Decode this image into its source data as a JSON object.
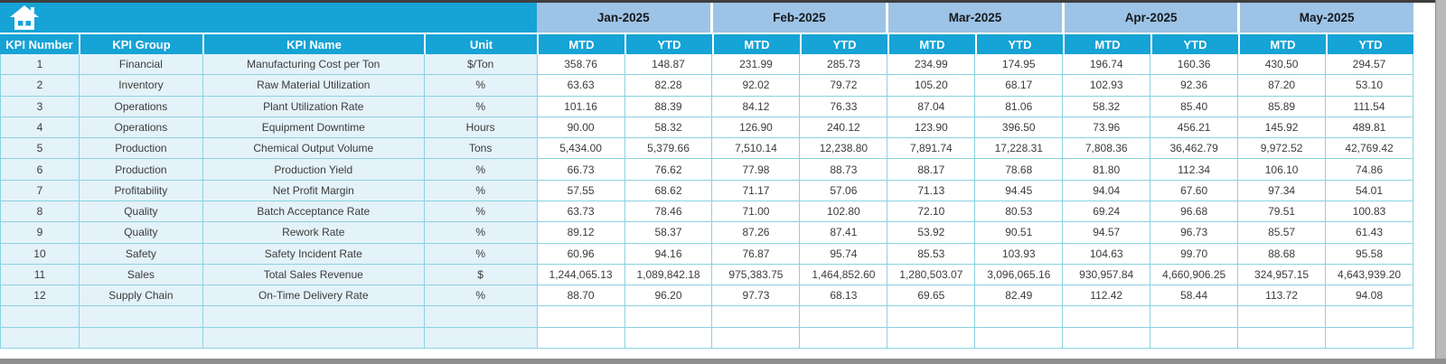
{
  "app": {
    "home_icon": "home",
    "colors": {
      "accent_cyan": "#16a3d6",
      "month_band_blue": "#9dc3e6",
      "row_tint_blue": "#e4f2f9",
      "grid_line_teal": "#8ad2e3",
      "header_text": "#ffffff"
    }
  },
  "table": {
    "left_headers": [
      "KPI Number",
      "KPI Group",
      "KPI Name",
      "Unit"
    ],
    "months": [
      "Jan-2025",
      "Feb-2025",
      "Mar-2025",
      "Apr-2025",
      "May-2025"
    ],
    "period_headers": [
      "MTD",
      "YTD"
    ],
    "rows": [
      {
        "kpi_number": "1",
        "kpi_group": "Financial",
        "kpi_name": "Manufacturing Cost per Ton",
        "unit": "$/Ton",
        "values": [
          "358.76",
          "148.87",
          "231.99",
          "285.73",
          "234.99",
          "174.95",
          "196.74",
          "160.36",
          "430.50",
          "294.57"
        ]
      },
      {
        "kpi_number": "2",
        "kpi_group": "Inventory",
        "kpi_name": "Raw Material Utilization",
        "unit": "%",
        "values": [
          "63.63",
          "82.28",
          "92.02",
          "79.72",
          "105.20",
          "68.17",
          "102.93",
          "92.36",
          "87.20",
          "53.10"
        ]
      },
      {
        "kpi_number": "3",
        "kpi_group": "Operations",
        "kpi_name": "Plant Utilization Rate",
        "unit": "%",
        "values": [
          "101.16",
          "88.39",
          "84.12",
          "76.33",
          "87.04",
          "81.06",
          "58.32",
          "85.40",
          "85.89",
          "111.54"
        ]
      },
      {
        "kpi_number": "4",
        "kpi_group": "Operations",
        "kpi_name": "Equipment Downtime",
        "unit": "Hours",
        "values": [
          "90.00",
          "58.32",
          "126.90",
          "240.12",
          "123.90",
          "396.50",
          "73.96",
          "456.21",
          "145.92",
          "489.81"
        ]
      },
      {
        "kpi_number": "5",
        "kpi_group": "Production",
        "kpi_name": "Chemical Output Volume",
        "unit": "Tons",
        "values": [
          "5,434.00",
          "5,379.66",
          "7,510.14",
          "12,238.80",
          "7,891.74",
          "17,228.31",
          "7,808.36",
          "36,462.79",
          "9,972.52",
          "42,769.42"
        ]
      },
      {
        "kpi_number": "6",
        "kpi_group": "Production",
        "kpi_name": "Production Yield",
        "unit": "%",
        "values": [
          "66.73",
          "76.62",
          "77.98",
          "88.73",
          "88.17",
          "78.68",
          "81.80",
          "112.34",
          "106.10",
          "74.86"
        ]
      },
      {
        "kpi_number": "7",
        "kpi_group": "Profitability",
        "kpi_name": "Net Profit Margin",
        "unit": "%",
        "values": [
          "57.55",
          "68.62",
          "71.17",
          "57.06",
          "71.13",
          "94.45",
          "94.04",
          "67.60",
          "97.34",
          "54.01"
        ]
      },
      {
        "kpi_number": "8",
        "kpi_group": "Quality",
        "kpi_name": "Batch Acceptance Rate",
        "unit": "%",
        "values": [
          "63.73",
          "78.46",
          "71.00",
          "102.80",
          "72.10",
          "80.53",
          "69.24",
          "96.68",
          "79.51",
          "100.83"
        ]
      },
      {
        "kpi_number": "9",
        "kpi_group": "Quality",
        "kpi_name": "Rework Rate",
        "unit": "%",
        "values": [
          "89.12",
          "58.37",
          "87.26",
          "87.41",
          "53.92",
          "90.51",
          "94.57",
          "96.73",
          "85.57",
          "61.43"
        ]
      },
      {
        "kpi_number": "10",
        "kpi_group": "Safety",
        "kpi_name": "Safety Incident Rate",
        "unit": "%",
        "values": [
          "60.96",
          "94.16",
          "76.87",
          "95.74",
          "85.53",
          "103.93",
          "104.63",
          "99.70",
          "88.68",
          "95.58"
        ]
      },
      {
        "kpi_number": "11",
        "kpi_group": "Sales",
        "kpi_name": "Total Sales Revenue",
        "unit": "$",
        "values": [
          "1,244,065.13",
          "1,089,842.18",
          "975,383.75",
          "1,464,852.60",
          "1,280,503.07",
          "3,096,065.16",
          "930,957.84",
          "4,660,906.25",
          "324,957.15",
          "4,643,939.20"
        ]
      },
      {
        "kpi_number": "12",
        "kpi_group": "Supply Chain",
        "kpi_name": "On-Time Delivery Rate",
        "unit": "%",
        "values": [
          "88.70",
          "96.20",
          "97.73",
          "68.13",
          "69.65",
          "82.49",
          "112.42",
          "58.44",
          "113.72",
          "94.08"
        ]
      }
    ],
    "empty_row_count": 2
  }
}
